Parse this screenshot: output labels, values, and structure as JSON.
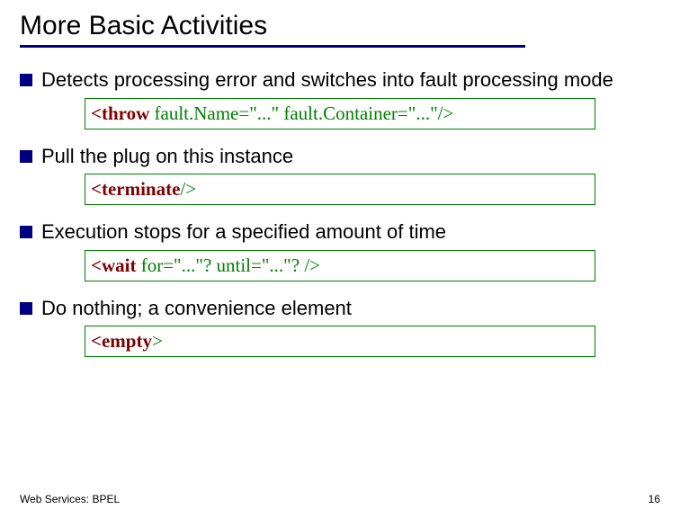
{
  "title": "More Basic Activities",
  "bullets": [
    {
      "text": "Detects processing error and switches into fault processing mode"
    },
    {
      "text": "Pull the plug on this instance"
    },
    {
      "text": "Execution stops for a specified amount of time"
    },
    {
      "text": "Do nothing; a convenience element"
    }
  ],
  "codes": [
    {
      "kw_open": "<throw",
      "attrs": " fault.Name=\"...\" fault.Container=\"...\"/>"
    },
    {
      "kw_open": "<terminate",
      "attrs": "/>"
    },
    {
      "kw_open": "<wait",
      "attrs": " for=\"...\"? until=\"...\"? />"
    },
    {
      "kw_open": "<empty",
      "attrs": ">"
    }
  ],
  "footer": "Web Services: BPEL",
  "page_number": "16",
  "colors": {
    "title_underline": "#000080",
    "bullet_square": "#000080",
    "code_border": "#008000",
    "keyword": "#800000",
    "attribute": "#008000",
    "text": "#000000",
    "background": "#ffffff"
  },
  "fontsizes": {
    "title": 30,
    "bullet": 22,
    "code": 21,
    "footer": 12
  }
}
